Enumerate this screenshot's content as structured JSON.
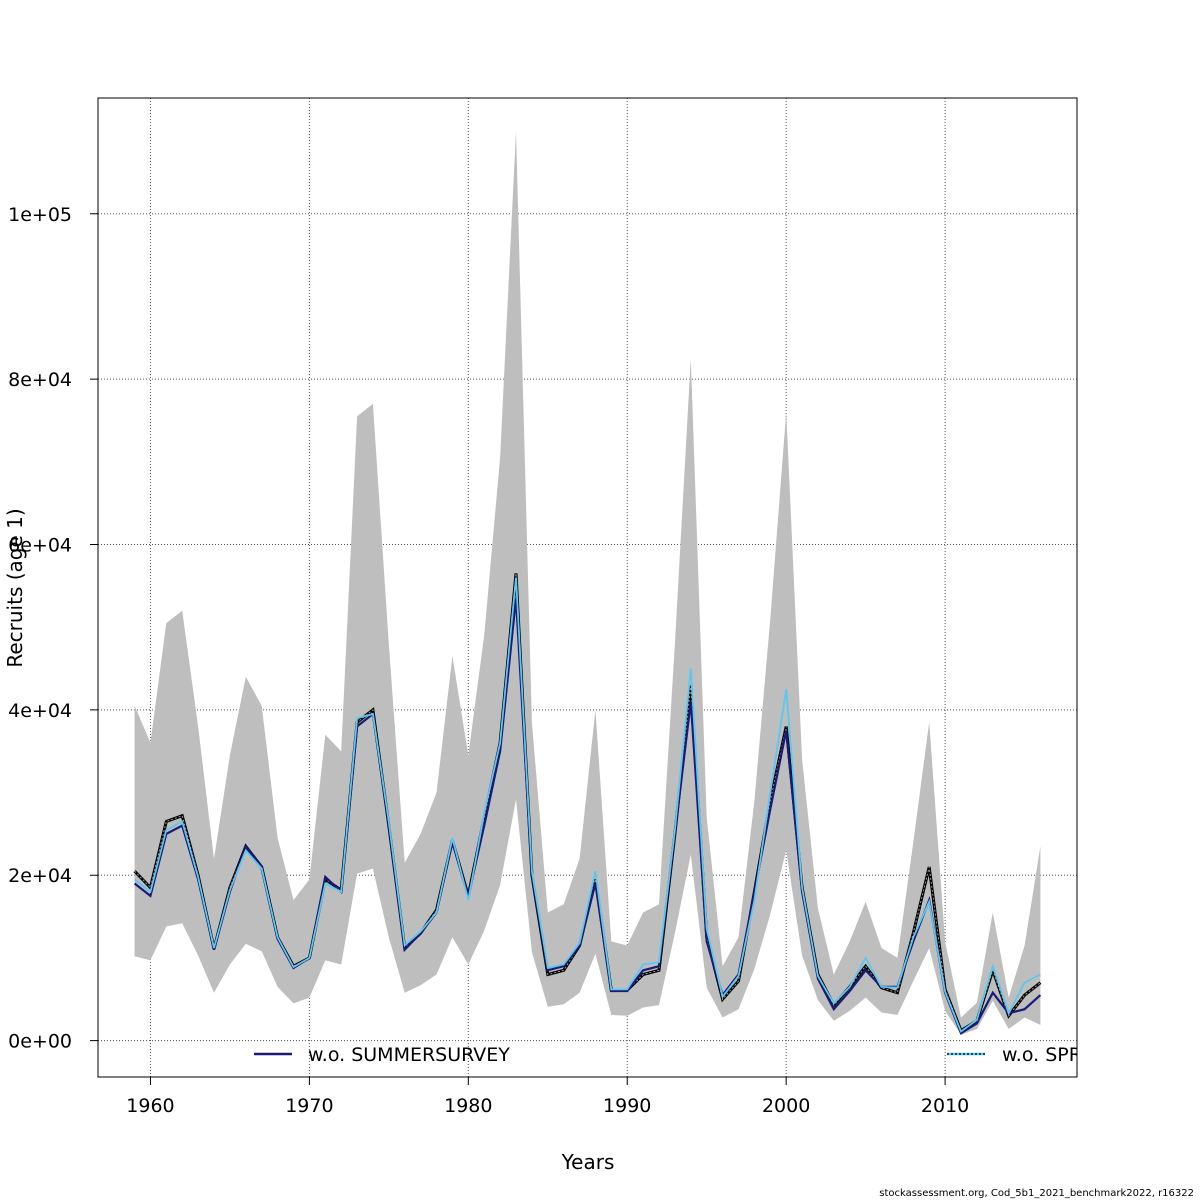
{
  "footer": "stockassessment.org, Cod_5b1_2021_benchmark2022, r16322",
  "chart_data": {
    "type": "line",
    "xlabel": "Years",
    "ylabel": "Recruits (age 1)",
    "xlim": [
      1956.7,
      2018.3
    ],
    "ylim": [
      -4400,
      114000
    ],
    "x_ticks": [
      {
        "value": 1960,
        "label": "1960"
      },
      {
        "value": 1970,
        "label": "1970"
      },
      {
        "value": 1980,
        "label": "1980"
      },
      {
        "value": 1990,
        "label": "1990"
      },
      {
        "value": 2000,
        "label": "2000"
      },
      {
        "value": 2010,
        "label": "2010"
      }
    ],
    "y_ticks": [
      {
        "value": 0,
        "label": "0e+00"
      },
      {
        "value": 20000,
        "label": "2e+04"
      },
      {
        "value": 40000,
        "label": "4e+04"
      },
      {
        "value": 60000,
        "label": "6e+04"
      },
      {
        "value": 80000,
        "label": "8e+04"
      },
      {
        "value": 100000,
        "label": "1e+05"
      }
    ],
    "grid": true,
    "colors": {
      "band": "#bebebe",
      "base": "#000000",
      "summersurvey": "#1a1a78",
      "spring": "#5ac8f0"
    },
    "x": [
      1959,
      1960,
      1961,
      1962,
      1963,
      1964,
      1965,
      1966,
      1967,
      1968,
      1969,
      1970,
      1971,
      1972,
      1973,
      1974,
      1975,
      1976,
      1977,
      1978,
      1979,
      1980,
      1981,
      1982,
      1983,
      1984,
      1985,
      1986,
      1987,
      1988,
      1989,
      1990,
      1991,
      1992,
      1993,
      1994,
      1995,
      1996,
      1997,
      1998,
      1999,
      2000,
      2001,
      2002,
      2003,
      2004,
      2005,
      2006,
      2007,
      2008,
      2009,
      2010,
      2011,
      2012,
      2013,
      2014,
      2015,
      2016
    ],
    "band_upper": [
      40500,
      36000,
      50500,
      52000,
      38000,
      22000,
      34500,
      44000,
      40500,
      24500,
      17000,
      19500,
      37000,
      35000,
      75500,
      77000,
      48000,
      21500,
      25000,
      30000,
      46500,
      34500,
      49000,
      70500,
      110000,
      38500,
      15500,
      16500,
      22000,
      40000,
      12000,
      11500,
      15500,
      16500,
      48000,
      82500,
      27000,
      9000,
      12500,
      29000,
      51000,
      76000,
      34000,
      16000,
      8000,
      12000,
      16800,
      11200,
      10000,
      24000,
      38500,
      12000,
      2800,
      4600,
      15500,
      5200,
      11500,
      23500
    ],
    "band_lower": [
      10200,
      9700,
      13800,
      14200,
      10300,
      5800,
      9200,
      11700,
      10800,
      6500,
      4500,
      5200,
      9700,
      9200,
      20200,
      20800,
      12500,
      5800,
      6700,
      8000,
      12500,
      9200,
      13300,
      18800,
      29200,
      10700,
      4100,
      4400,
      5800,
      10500,
      3100,
      3000,
      4000,
      4300,
      13000,
      22500,
      6400,
      2800,
      3800,
      8700,
      15300,
      23000,
      10300,
      4900,
      2400,
      3600,
      5200,
      3400,
      3100,
      7200,
      11200,
      3600,
      700,
      1400,
      4800,
      1400,
      2800,
      1900
    ],
    "series": [
      {
        "key": "base",
        "values": [
          20500,
          18500,
          26500,
          27200,
          20000,
          11100,
          18500,
          23500,
          21000,
          12500,
          9000,
          10000,
          19500,
          18200,
          38500,
          40000,
          26000,
          11200,
          13000,
          15800,
          24200,
          17500,
          27000,
          36000,
          56500,
          20000,
          8000,
          8500,
          11500,
          19500,
          6100,
          6100,
          8000,
          8500,
          25000,
          43000,
          12500,
          5000,
          7200,
          18000,
          29000,
          38000,
          18500,
          8000,
          4300,
          6500,
          9000,
          6400,
          5800,
          13000,
          21000,
          6200,
          1200,
          2400,
          8500,
          3000,
          5500,
          7000
        ]
      },
      {
        "key": "summersurvey",
        "name": "w.o. SUMMERSURVEY",
        "values": [
          19000,
          17500,
          25000,
          26000,
          19500,
          11000,
          18000,
          23500,
          21000,
          12300,
          8800,
          10000,
          19800,
          18000,
          38000,
          39500,
          26000,
          11000,
          13000,
          15500,
          24000,
          17500,
          26000,
          35000,
          53500,
          20000,
          8500,
          9000,
          11500,
          19000,
          6000,
          6000,
          8500,
          9000,
          25000,
          41000,
          12000,
          5500,
          8000,
          18000,
          28000,
          37500,
          18000,
          7500,
          3800,
          6000,
          8500,
          6500,
          6500,
          12000,
          17000,
          5800,
          900,
          2100,
          5800,
          3300,
          3800,
          5500
        ]
      },
      {
        "key": "spring",
        "name": "w.o. SPR",
        "values": [
          19500,
          18000,
          25500,
          26500,
          19800,
          11200,
          18200,
          23000,
          20800,
          12500,
          8900,
          10000,
          19000,
          18000,
          39000,
          39500,
          26500,
          11500,
          13200,
          15500,
          24500,
          17000,
          27500,
          36000,
          56000,
          20500,
          8800,
          9200,
          11800,
          20500,
          6200,
          6200,
          9200,
          9500,
          25500,
          45000,
          13500,
          5300,
          7800,
          17000,
          30000,
          42500,
          18500,
          7800,
          4500,
          6500,
          10000,
          6500,
          6400,
          12500,
          16800,
          5900,
          1100,
          2500,
          9000,
          3300,
          7000,
          8000
        ]
      }
    ]
  }
}
